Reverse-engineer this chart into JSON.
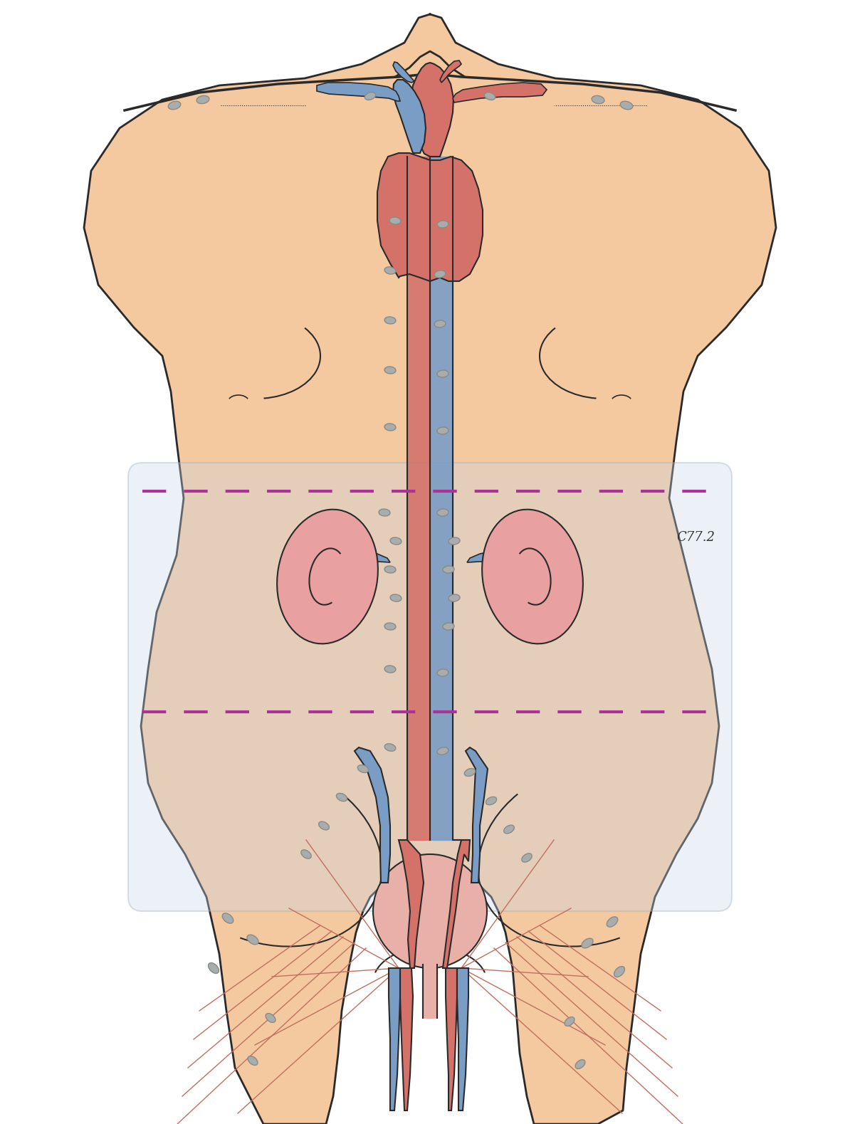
{
  "figure_width": 12.08,
  "figure_height": 15.79,
  "dpi": 100,
  "background_color": "#ffffff",
  "skin_color": "#F5C9A0",
  "skin_light": "#F8D9BA",
  "vessel_red": "#D4726A",
  "vessel_blue": "#7A9DC5",
  "vessel_blue_dark": "#5A7DA8",
  "node_color": "#A8ACAA",
  "node_edge": "#888B89",
  "kidney_color": "#E8A0A0",
  "kidney_light": "#F0C0B0",
  "bladder_color": "#E8B0A8",
  "outline_color": "#2A2A2A",
  "dashed_line_color": "#AA3399",
  "abdominal_region_color": "#C8D8E8",
  "label_c772": "C77.2",
  "label_fontsize": 13
}
